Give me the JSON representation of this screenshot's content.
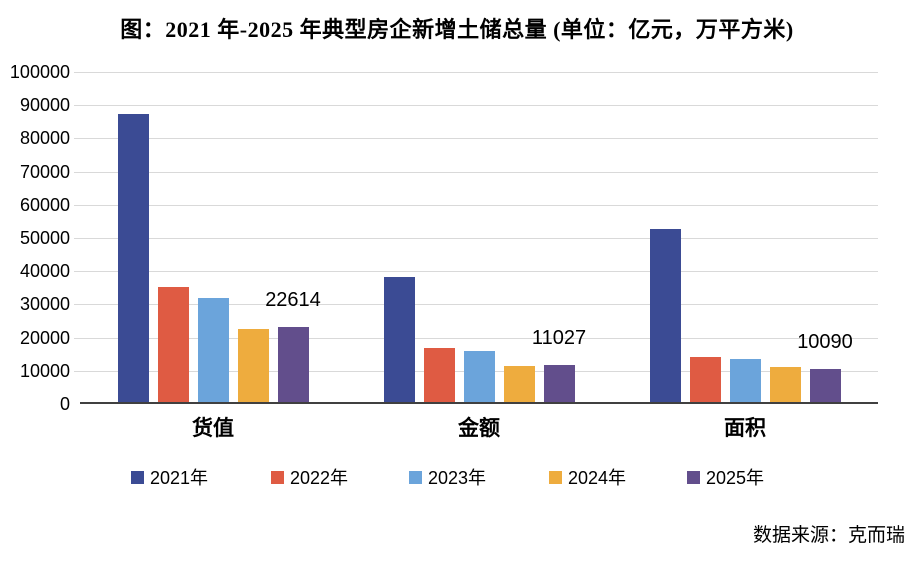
{
  "title": "图：2021 年-2025 年典型房企新增土储总量 (单位：亿元，万平方米)",
  "footer": {
    "source": "数据来源：克而瑞"
  },
  "colors": {
    "series_2021": "#3B4B94",
    "series_2022": "#DF5B43",
    "series_2023": "#6BA4DB",
    "series_2024": "#EEAC3E",
    "series_2025": "#624E8C",
    "gridline": "#D9D9D9",
    "axis_line": "#404040",
    "text": "#000000",
    "background": "#FFFFFF"
  },
  "chart_data": {
    "type": "bar",
    "title": "图：2021 年-2025 年典型房企新增土储总量 (单位：亿元，万平方米)",
    "categories": [
      "货值",
      "金额",
      "面积"
    ],
    "series": [
      {
        "name": "2021年",
        "color": "#3B4B94",
        "values": [
          86700,
          37600,
          52000
        ],
        "show_labels": false
      },
      {
        "name": "2022年",
        "color": "#DF5B43",
        "values": [
          34600,
          16400,
          13700
        ],
        "show_labels": false
      },
      {
        "name": "2023年",
        "color": "#6BA4DB",
        "values": [
          31400,
          15400,
          13100
        ],
        "show_labels": false
      },
      {
        "name": "2024年",
        "color": "#EEAC3E",
        "values": [
          22100,
          10700,
          10400
        ],
        "show_labels": false
      },
      {
        "name": "2025年",
        "color": "#624E8C",
        "values": [
          22614,
          11027,
          10090
        ],
        "show_labels": true
      }
    ],
    "data_labels_2025": [
      "22614",
      "11027",
      "10090"
    ],
    "xlabel": "",
    "ylabel": "",
    "ylim": [
      0,
      100000
    ],
    "ytick_step": 10000,
    "ytick_labels": [
      "0",
      "10000",
      "20000",
      "30000",
      "40000",
      "50000",
      "60000",
      "70000",
      "80000",
      "90000",
      "100000"
    ],
    "grid": true,
    "legend_position": "bottom",
    "source": "数据来源：克而瑞"
  }
}
